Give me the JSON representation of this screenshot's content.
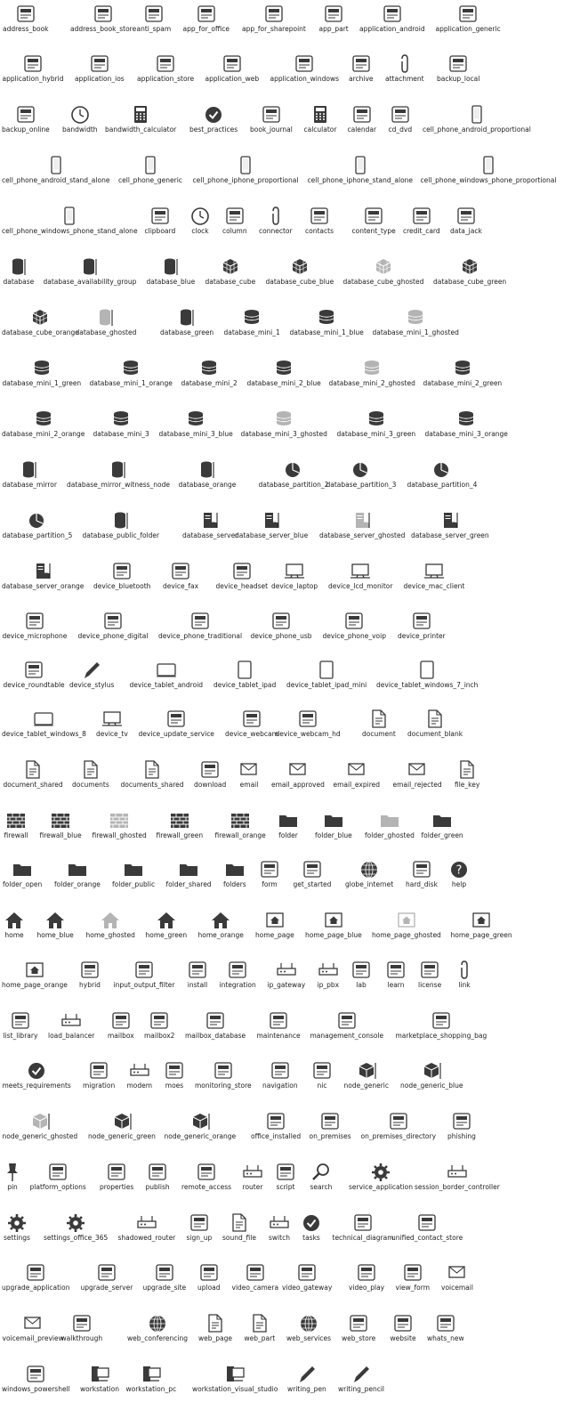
{
  "rows": [
    [
      "address_book",
      "address_book_store",
      "anti_spam",
      "app_for_office",
      "app_for_sharepoint",
      "app_part",
      "application_android",
      "application_generic"
    ],
    [
      "application_hybrid",
      "application_ios",
      "application_store",
      "application_web",
      "application_windows",
      "archive",
      "attachment",
      "backup_local"
    ],
    [
      "backup_online",
      "bandwidth",
      "bandwidth_calculator",
      "best_practices",
      "book_journal",
      "calculator",
      "calendar",
      "cd_dvd",
      "cell_phone_android_proportional"
    ],
    [
      "cell_phone_android_stand_alone",
      "cell_phone_generic",
      "cell_phone_iphone_proportional",
      "cell_phone_iphone_stand_alone",
      "cell_phone_windows_phone_proportional"
    ],
    [
      "cell_phone_windows_phone_stand_alone",
      "clipboard",
      "clock",
      "column",
      "connector",
      "contacts",
      "content_type",
      "credit_card",
      "data_jack"
    ],
    [
      "database",
      "database_availability_group",
      "database_blue",
      "database_cube",
      "database_cube_blue",
      "database_cube_ghosted",
      "database_cube_green"
    ],
    [
      "database_cube_orange",
      "database_ghosted",
      "database_green",
      "database_mini_1",
      "database_mini_1_blue",
      "database_mini_1_ghosted"
    ],
    [
      "database_mini_1_green",
      "database_mini_1_orange",
      "database_mini_2",
      "database_mini_2_blue",
      "database_mini_2_ghosted",
      "database_mini_2_green"
    ],
    [
      "database_mini_2_orange",
      "database_mini_3",
      "database_mini_3_blue",
      "database_mini_3_ghosted",
      "database_mini_3_green",
      "database_mini_3_orange"
    ],
    [
      "database_mirror",
      "database_mirror_witness_node",
      "database_orange",
      "database_partition_2",
      "database_partition_3",
      "database_partition_4"
    ],
    [
      "database_partition_5",
      "database_public_folder",
      "database_server",
      "database_server_blue",
      "database_server_ghosted",
      "database_server_green"
    ],
    [
      "database_server_orange",
      "device_bluetooth",
      "device_fax",
      "device_headset",
      "device_laptop",
      "device_lcd_monitor",
      "device_mac_client"
    ],
    [
      "device_microphone",
      "device_phone_digital",
      "device_phone_traditional",
      "device_phone_usb",
      "device_phone_voip",
      "device_printer"
    ],
    [
      "device_roundtable",
      "device_stylus",
      "device_tablet_android",
      "device_tablet_ipad",
      "device_tablet_ipad_mini",
      "device_tablet_windows_7_inch"
    ],
    [
      "device_tablet_windows_8",
      "device_tv",
      "device_update_service",
      "device_webcam",
      "device_webcam_hd",
      "document",
      "document_blank"
    ],
    [
      "document_shared",
      "documents",
      "documents_shared",
      "download",
      "email",
      "email_approved",
      "email_expired",
      "email_rejected",
      "file_key"
    ],
    [
      "firewall",
      "firewall_blue",
      "firewall_ghosted",
      "firewall_green",
      "firewall_orange",
      "folder",
      "folder_blue",
      "folder_ghosted",
      "folder_green"
    ],
    [
      "folder_open",
      "folder_orange",
      "folder_public",
      "folder_shared",
      "folders",
      "form",
      "get_started",
      "globe_internet",
      "hard_disk",
      "help"
    ],
    [
      "home",
      "home_blue",
      "home_ghosted",
      "home_green",
      "home_orange",
      "home_page",
      "home_page_blue",
      "home_page_ghosted",
      "home_page_green"
    ],
    [
      "home_page_orange",
      "hybrid",
      "input_output_filter",
      "install",
      "integration",
      "ip_gateway",
      "ip_pbx",
      "lab",
      "learn",
      "license",
      "link"
    ],
    [
      "list_library",
      "load_balancer",
      "mailbox",
      "mailbox2",
      "mailbox_database",
      "maintenance",
      "management_console",
      "marketplace_shopping_bag"
    ],
    [
      "meets_requirements",
      "migration",
      "modem",
      "moes",
      "monitoring_store",
      "navigation",
      "nic",
      "node_generic",
      "node_generic_blue"
    ],
    [
      "node_generic_ghosted",
      "node_generic_green",
      "node_generic_orange",
      "office_installed",
      "on_premises",
      "on_premises_directory",
      "phishing"
    ],
    [
      "pin",
      "platform_options",
      "properties",
      "publish",
      "remote_access",
      "router",
      "script",
      "search",
      "service_application",
      "session_border_controller"
    ],
    [
      "settings",
      "settings_office_365",
      "shadowed_router",
      "sign_up",
      "sound_file",
      "switch",
      "tasks",
      "technical_diagram",
      "unified_contact_store"
    ],
    [
      "upgrade_application",
      "upgrade_server",
      "upgrade_site",
      "upload",
      "video_camera",
      "video_gateway",
      "video_play",
      "view_form",
      "voicemail"
    ],
    [
      "voicemail_preview",
      "walkthrough",
      "web_conferencing",
      "web_page",
      "web_part",
      "web_services",
      "web_store",
      "website",
      "whats_new"
    ],
    [
      "windows_powershell",
      "workstation",
      "workstation_pc",
      "workstation_visual_studio",
      "writing_pen",
      "writing_pencil"
    ]
  ],
  "colors": {
    "icon": "#3a3a3a",
    "ghosted": "#b4b4b4",
    "label": "#222222",
    "background": "#ffffff"
  }
}
